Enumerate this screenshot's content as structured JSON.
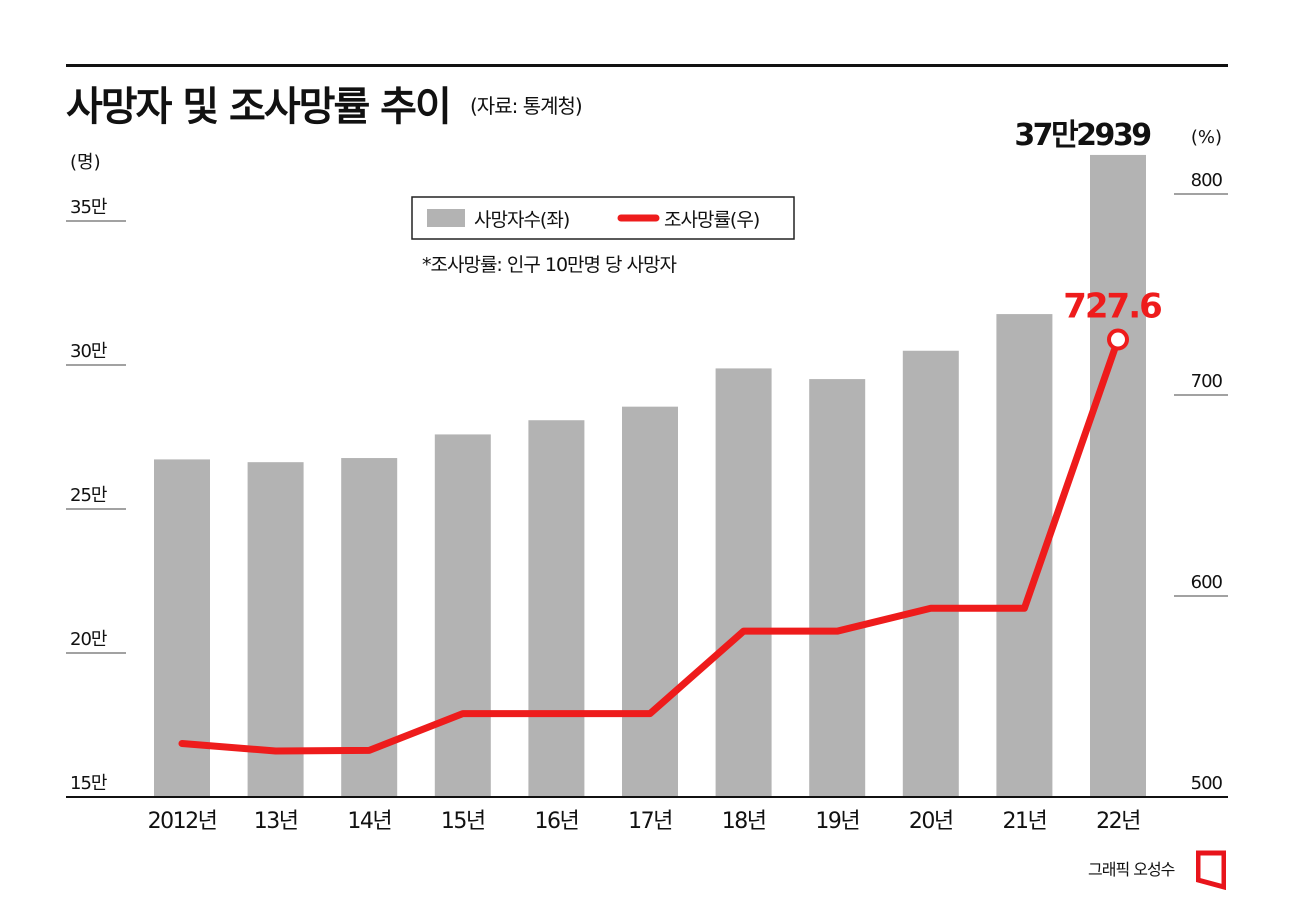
{
  "title": "사망자 및 조사망률 추이",
  "source": "(자료: 통계청)",
  "credit": "그래픽 오성수",
  "chart_data": {
    "type": "bar",
    "categories": [
      "2012년",
      "13년",
      "14년",
      "15년",
      "16년",
      "17년",
      "18년",
      "19년",
      "20년",
      "21년",
      "22년"
    ],
    "series": [
      {
        "name": "사망자수(좌)",
        "type": "bar",
        "axis": "left",
        "color": "#b3b3b3",
        "values": [
          267221,
          266257,
          267692,
          275895,
          280827,
          285534,
          298820,
          295110,
          304948,
          317680,
          372939
        ]
      },
      {
        "name": "조사망률(우)",
        "type": "line",
        "axis": "right",
        "color": "#ee1c1c",
        "values": [
          526.6,
          522.9,
          523.2,
          541.5,
          541.5,
          541.5,
          582.5,
          582.5,
          593.9,
          593.9,
          727.6
        ]
      }
    ],
    "y_left": {
      "unit": "(명)",
      "ylim": [
        150000,
        372939
      ],
      "ticks": [
        150000,
        200000,
        250000,
        300000,
        350000
      ],
      "tick_labels": [
        "15만",
        "20만",
        "25만",
        "30만",
        "35만"
      ]
    },
    "y_right": {
      "unit": "(%)",
      "ylim": [
        500,
        800
      ],
      "ticks": [
        500,
        600,
        700,
        800
      ],
      "tick_labels": [
        "500",
        "600",
        "700",
        "800"
      ]
    },
    "annotations": {
      "bar_peak_label": "37만2939",
      "line_peak_label": "727.6"
    },
    "legend": {
      "position": "top-center",
      "items": [
        "사망자수(좌)",
        "조사망률(우)"
      ]
    },
    "note": "*조사망률: 인구 10만명 당 사망자"
  }
}
